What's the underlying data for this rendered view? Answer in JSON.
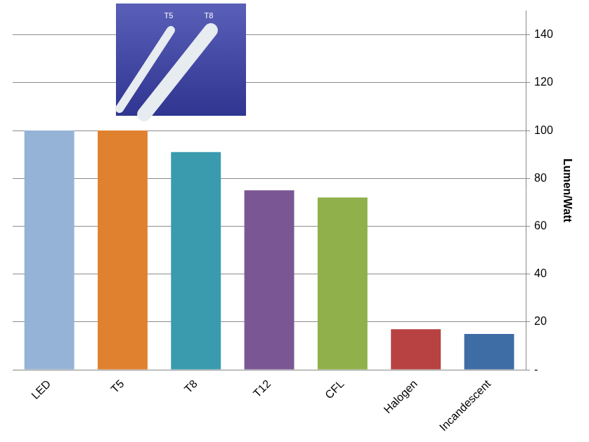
{
  "chart_data": {
    "type": "bar",
    "y_label": "Lumen/Watt",
    "annotations": [
      "T5",
      "T8"
    ],
    "categories": [
      "LED",
      "T5",
      "T8",
      "T12",
      "CFL",
      "Halogen",
      "Incandescent"
    ],
    "values": [
      100,
      100,
      91,
      75,
      72,
      17,
      15
    ],
    "colors": [
      "#95b3d7",
      "#e0812f",
      "#3a9aae",
      "#7b5694",
      "#8fb04a",
      "#b84242",
      "#3e6ca4"
    ],
    "ylim": [
      0,
      150
    ],
    "yticks": [
      {
        "value": 0,
        "label": "-"
      },
      20,
      40,
      60,
      80,
      100,
      120,
      140
    ],
    "grid": true
  }
}
